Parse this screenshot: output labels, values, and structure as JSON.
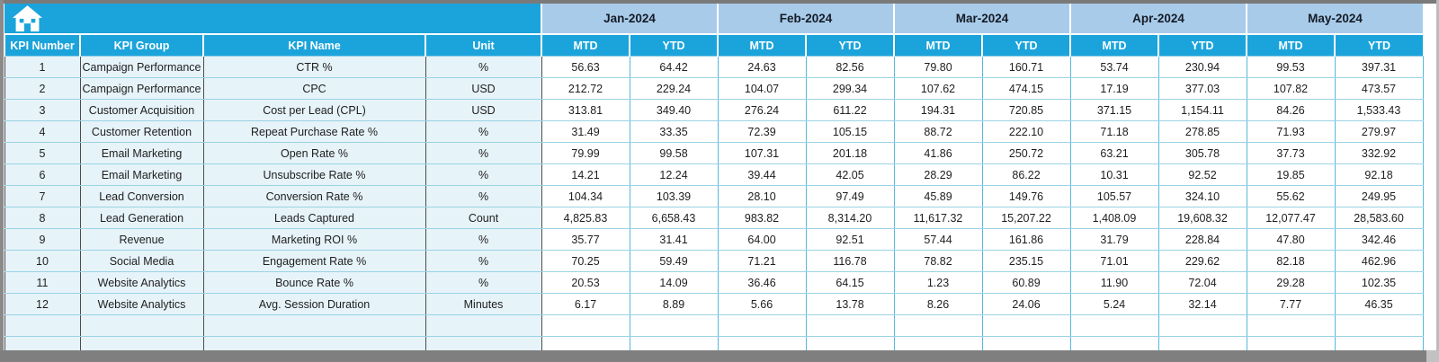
{
  "colors": {
    "header_cyan": "#1BA4DB",
    "month_blue": "#A9CBEA",
    "left_cell_bg": "#E6F3F9",
    "grid_teal": "#56B9DB",
    "grid_teal_light": "#9AD3E4",
    "header_text": "#FFFFFF",
    "body_text": "#1E1E1E",
    "window_bar_gray": "#7F7F7F"
  },
  "icons": {
    "home": "home-icon"
  },
  "table": {
    "months": [
      "Jan-2024",
      "Feb-2024",
      "Mar-2024",
      "Apr-2024",
      "May-2024"
    ],
    "period_headers": [
      "MTD",
      "YTD"
    ],
    "left_headers": [
      "KPI Number",
      "KPI Group",
      "KPI Name",
      "Unit"
    ],
    "rows": [
      {
        "number": "1",
        "group": "Campaign Performance",
        "name": "CTR %",
        "unit": "%",
        "values": [
          "56.63",
          "64.42",
          "24.63",
          "82.56",
          "79.80",
          "160.71",
          "53.74",
          "230.94",
          "99.53",
          "397.31"
        ]
      },
      {
        "number": "2",
        "group": "Campaign Performance",
        "name": "CPC",
        "unit": "USD",
        "values": [
          "212.72",
          "229.24",
          "104.07",
          "299.34",
          "107.62",
          "474.15",
          "17.19",
          "377.03",
          "107.82",
          "473.57"
        ]
      },
      {
        "number": "3",
        "group": "Customer Acquisition",
        "name": "Cost per Lead (CPL)",
        "unit": "USD",
        "values": [
          "313.81",
          "349.40",
          "276.24",
          "611.22",
          "194.31",
          "720.85",
          "371.15",
          "1,154.11",
          "84.26",
          "1,533.43"
        ]
      },
      {
        "number": "4",
        "group": "Customer Retention",
        "name": "Repeat Purchase Rate %",
        "unit": "%",
        "values": [
          "31.49",
          "33.35",
          "72.39",
          "105.15",
          "88.72",
          "222.10",
          "71.18",
          "278.85",
          "71.93",
          "279.97"
        ]
      },
      {
        "number": "5",
        "group": "Email Marketing",
        "name": "Open Rate %",
        "unit": "%",
        "values": [
          "79.99",
          "99.58",
          "107.31",
          "201.18",
          "41.86",
          "250.72",
          "63.21",
          "305.78",
          "37.73",
          "332.92"
        ]
      },
      {
        "number": "6",
        "group": "Email Marketing",
        "name": "Unsubscribe Rate %",
        "unit": "%",
        "values": [
          "14.21",
          "12.24",
          "39.44",
          "42.05",
          "28.29",
          "86.22",
          "10.31",
          "92.52",
          "19.85",
          "92.18"
        ]
      },
      {
        "number": "7",
        "group": "Lead Conversion",
        "name": "Conversion Rate %",
        "unit": "%",
        "values": [
          "104.34",
          "103.39",
          "28.10",
          "97.49",
          "45.89",
          "149.76",
          "105.57",
          "324.10",
          "55.62",
          "249.95"
        ]
      },
      {
        "number": "8",
        "group": "Lead Generation",
        "name": "Leads Captured",
        "unit": "Count",
        "values": [
          "4,825.83",
          "6,658.43",
          "983.82",
          "8,314.20",
          "11,617.32",
          "15,207.22",
          "1,408.09",
          "19,608.32",
          "12,077.47",
          "28,583.60"
        ]
      },
      {
        "number": "9",
        "group": "Revenue",
        "name": "Marketing ROI %",
        "unit": "%",
        "values": [
          "35.77",
          "31.41",
          "64.00",
          "92.51",
          "57.44",
          "161.86",
          "31.79",
          "228.84",
          "47.80",
          "342.46"
        ]
      },
      {
        "number": "10",
        "group": "Social Media",
        "name": "Engagement Rate %",
        "unit": "%",
        "values": [
          "70.25",
          "59.49",
          "71.21",
          "116.78",
          "78.82",
          "235.15",
          "71.01",
          "229.62",
          "82.18",
          "462.96"
        ]
      },
      {
        "number": "11",
        "group": "Website Analytics",
        "name": "Bounce Rate %",
        "unit": "%",
        "values": [
          "20.53",
          "14.09",
          "36.46",
          "64.15",
          "1.23",
          "60.89",
          "11.90",
          "72.04",
          "29.28",
          "102.35"
        ]
      },
      {
        "number": "12",
        "group": "Website Analytics",
        "name": "Avg. Session Duration",
        "unit": "Minutes",
        "values": [
          "6.17",
          "8.89",
          "5.66",
          "13.78",
          "8.26",
          "24.06",
          "5.24",
          "32.14",
          "7.77",
          "46.35"
        ]
      }
    ],
    "empty_rows": 2
  }
}
